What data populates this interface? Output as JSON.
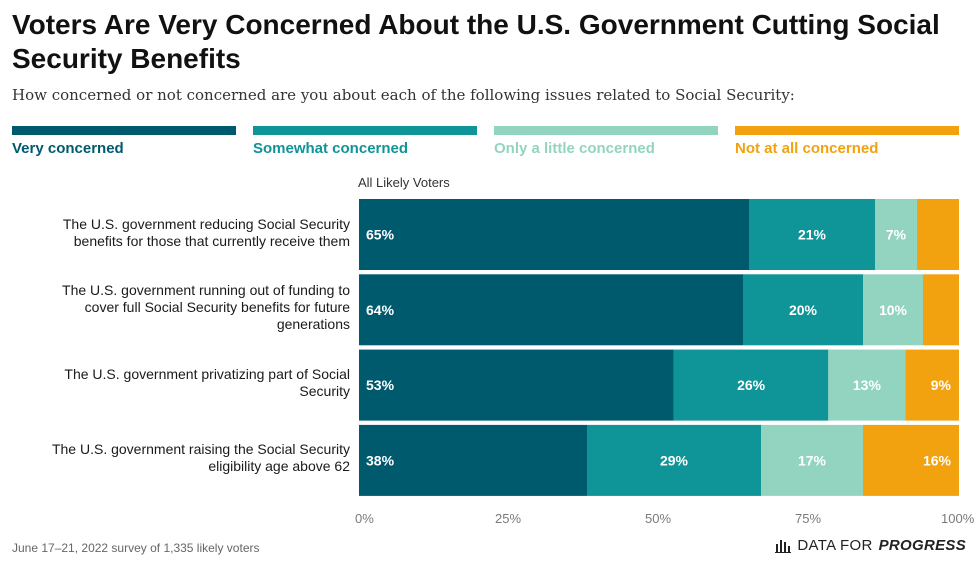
{
  "title": "Voters Are Very Concerned About the U.S. Government Cutting Social Security Benefits",
  "subtitle": "How concerned or not concerned are you about each of the following issues related to Social Security:",
  "legend": [
    {
      "label": "Very concerned",
      "color": "#005a6e"
    },
    {
      "label": "Somewhat concerned",
      "color": "#0f9497"
    },
    {
      "label": "Only a little concerned",
      "color": "#93d4c0"
    },
    {
      "label": "Not at all concerned",
      "color": "#f2a20f"
    }
  ],
  "footnote": "June 17–21, 2022 survey of 1,335 likely voters",
  "logo": {
    "text_plain": "DATA FOR",
    "text_bold": "PROGRESS",
    "icon": "bar-chart-icon"
  },
  "chart_data": {
    "type": "bar",
    "orientation": "horizontal",
    "stacked": true,
    "group_label": "All Likely Voters",
    "categories": [
      "The U.S. government reducing Social Security benefits for those that currently receive them",
      "The U.S. government running out of funding to cover full Social Security benefits for future generations",
      "The U.S. government privatizing part of Social Security",
      "The U.S. government raising the Social Security eligibility age above 62"
    ],
    "category_lines": [
      [
        "The U.S. government reducing Social Security",
        "benefits for those that currently receive them"
      ],
      [
        "The U.S. government running out of funding to",
        "cover full Social Security benefits for future",
        "generations"
      ],
      [
        "The U.S. government privatizing part of Social",
        "Security"
      ],
      [
        "The U.S. government raising the Social Security",
        "eligibility age above 62"
      ]
    ],
    "series": [
      {
        "name": "Very concerned",
        "color": "#005a6e",
        "values": [
          65,
          64,
          53,
          38
        ],
        "labels": [
          "65%",
          "64%",
          "53%",
          "38%"
        ]
      },
      {
        "name": "Somewhat concerned",
        "color": "#0f9497",
        "values": [
          21,
          20,
          26,
          29
        ],
        "labels": [
          "21%",
          "20%",
          "26%",
          "29%"
        ]
      },
      {
        "name": "Only a little concerned",
        "color": "#93d4c0",
        "values": [
          7,
          10,
          13,
          17
        ],
        "labels": [
          "7%",
          "10%",
          "13%",
          "17%"
        ]
      },
      {
        "name": "Not at all concerned",
        "color": "#f2a20f",
        "values": [
          7,
          6,
          9,
          16
        ],
        "labels": [
          "",
          "",
          "9%",
          "16%"
        ]
      }
    ],
    "xlim": [
      0,
      100
    ],
    "xticks": [
      "0%",
      "25%",
      "50%",
      "75%",
      "100%"
    ],
    "grid": false,
    "legend_position": "top"
  }
}
